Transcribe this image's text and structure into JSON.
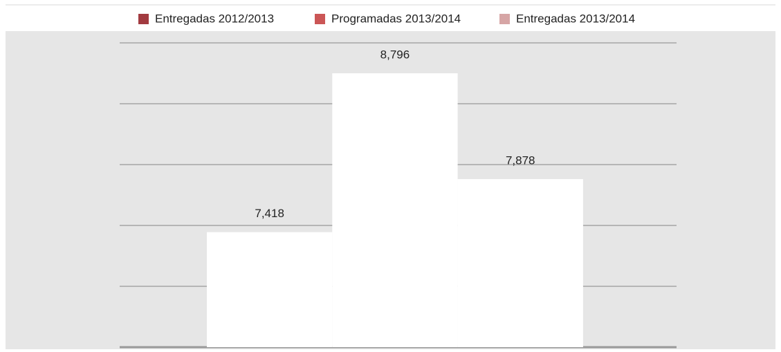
{
  "chart_data": {
    "type": "bar",
    "categories": [
      null
    ],
    "series": [
      {
        "name": "Entregadas 2012/2013",
        "color": "#a23b40",
        "values": [
          7418
        ],
        "value_labels": [
          "7,418"
        ]
      },
      {
        "name": "Programadas 2013/2014",
        "color": "#cb5656",
        "values": [
          8796
        ],
        "value_labels": [
          "8,796"
        ]
      },
      {
        "name": "Entregadas 2013/2014",
        "color": "#d6a5a5",
        "values": [
          7878
        ],
        "value_labels": [
          "7,878"
        ]
      }
    ],
    "bar_fill": "#ffffff",
    "ylim": [
      6420,
      9060
    ],
    "yticks": [
      6420,
      6948,
      7476,
      8004,
      8532,
      9060
    ],
    "grid": true,
    "legend": "top"
  }
}
